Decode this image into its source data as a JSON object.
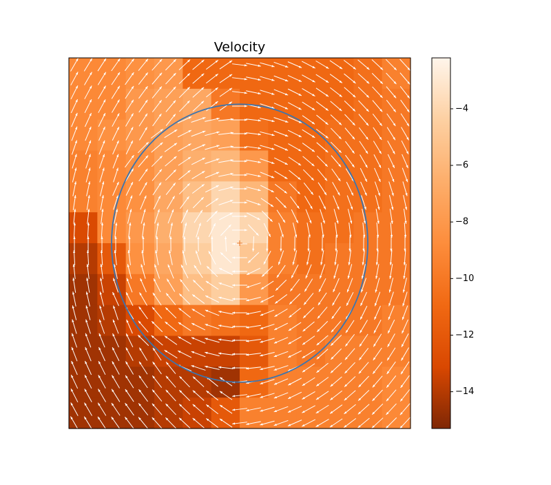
{
  "chart_data": {
    "type": "heatmap",
    "title": "Velocity",
    "xlim": [
      0,
      1
    ],
    "ylim": [
      0,
      1
    ],
    "z": [
      [
        -9,
        -9,
        -8.5,
        -8,
        -11,
        -11,
        -11,
        -11,
        -11,
        -11,
        -10.5,
        -9.5
      ],
      [
        -9,
        -9,
        -8,
        -7.5,
        -7,
        -10,
        -11,
        -11,
        -11,
        -11,
        -10.5,
        -10
      ],
      [
        -9,
        -8.5,
        -8,
        -7.5,
        -7,
        -7.5,
        -10.5,
        -11,
        -11,
        -10.5,
        -10.5,
        -10
      ],
      [
        -9.5,
        -9,
        -8.5,
        -7.5,
        -6.5,
        -6,
        -8,
        -11,
        -11,
        -10.5,
        -10.5,
        -10
      ],
      [
        -9.5,
        -9,
        -8.5,
        -7,
        -5.5,
        -4,
        -6,
        -10,
        -11,
        -10.5,
        -10.5,
        -10
      ],
      [
        -13,
        -9,
        -8,
        -6.5,
        -4,
        -3,
        -4,
        -9.5,
        -10.5,
        -10.5,
        -10,
        -10
      ],
      [
        -14,
        -12,
        -8.5,
        -7,
        -4.5,
        -3,
        -5,
        -9.5,
        -10.5,
        -10,
        -10,
        -10
      ],
      [
        -14.5,
        -13.5,
        -10,
        -7.5,
        -5.5,
        -4.5,
        -8,
        -10,
        -10,
        -10,
        -10,
        -10
      ],
      [
        -14.5,
        -14,
        -13,
        -11,
        -10,
        -10.5,
        -11,
        -9.5,
        -10,
        -10,
        -10,
        -9.5
      ],
      [
        -14.5,
        -14.5,
        -14,
        -13.5,
        -13.5,
        -13.5,
        -12,
        -9.5,
        -10,
        -9.5,
        -9.5,
        -9.5
      ],
      [
        -14.5,
        -14.5,
        -14.5,
        -14,
        -14,
        -14.5,
        -11,
        -9.5,
        -9.5,
        -9.5,
        -9.5,
        -9
      ],
      [
        -14.5,
        -14.5,
        -14.5,
        -14,
        -13.5,
        -12,
        -9.5,
        -9.5,
        -9.5,
        -9.5,
        -9.5,
        -9
      ]
    ],
    "colormap": [
      "#7f2704",
      "#d94801",
      "#f16913",
      "#fd8d3c",
      "#fdae6b",
      "#fdd0a2",
      "#fff5eb"
    ],
    "clim": [
      -15.3,
      -2.2
    ],
    "cticks": [
      {
        "value": -4,
        "label": "−4"
      },
      {
        "value": -6,
        "label": "−6"
      },
      {
        "value": -8,
        "label": "−8"
      },
      {
        "value": -10,
        "label": "−10"
      },
      {
        "value": -12,
        "label": "−12"
      },
      {
        "value": -14,
        "label": "−14"
      }
    ],
    "circle": {
      "center": [
        0.5,
        0.5
      ],
      "radius": 0.375,
      "color": "#3a75b0",
      "marker_color": "#e8701a"
    },
    "quiver_color": "#ffffff"
  }
}
